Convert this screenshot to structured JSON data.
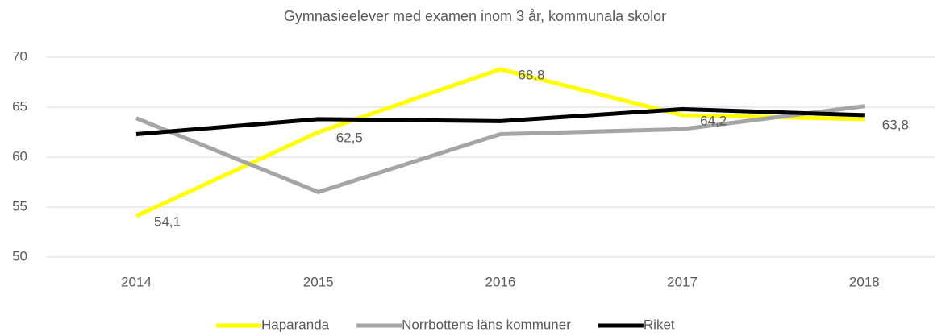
{
  "chart_data": {
    "type": "line",
    "title": "Gymnasieelever med examen inom 3 år, kommunala skolor",
    "categories": [
      "2014",
      "2015",
      "2016",
      "2017",
      "2018"
    ],
    "series": [
      {
        "name": "Haparanda",
        "color": "#ffff00",
        "values": [
          54.1,
          62.5,
          68.8,
          64.2,
          63.8
        ],
        "value_labels": [
          "54,1",
          "62,5",
          "68,8",
          "64,2",
          "63,8"
        ]
      },
      {
        "name": "Norrbottens läns kommuner",
        "color": "#a5a5a5",
        "values": [
          63.9,
          56.5,
          62.3,
          62.8,
          65.1
        ]
      },
      {
        "name": "Riket",
        "color": "#000000",
        "values": [
          62.3,
          63.8,
          63.6,
          64.8,
          64.2
        ]
      }
    ],
    "ylim": [
      50,
      70
    ],
    "yticks": [
      50,
      55,
      60,
      65,
      70
    ],
    "grid": true,
    "legend": "bottom"
  }
}
